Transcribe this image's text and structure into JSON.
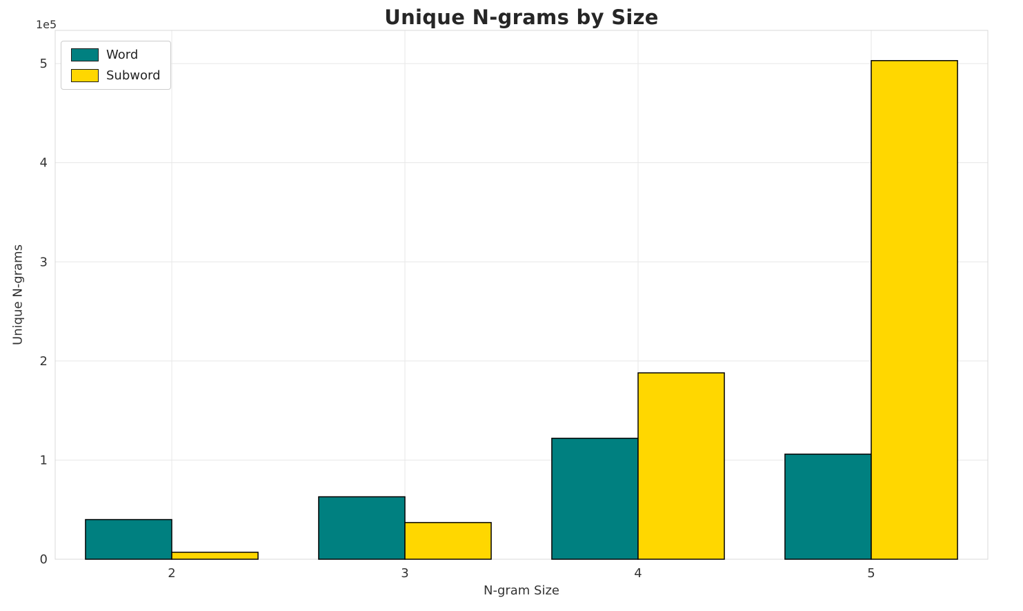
{
  "chart_data": {
    "type": "bar",
    "title": "Unique N-grams by Size",
    "xlabel": "N-gram Size",
    "ylabel": "Unique N-grams",
    "y_offset_label": "1e5",
    "categories": [
      "2",
      "3",
      "4",
      "5"
    ],
    "series": [
      {
        "name": "Word",
        "color": "#008080",
        "values": [
          40000,
          63000,
          122000,
          106000
        ]
      },
      {
        "name": "Subword",
        "color": "#FFD700",
        "values": [
          7000,
          37000,
          188000,
          503000
        ]
      }
    ],
    "ylim": [
      0,
      533500
    ],
    "yticks": [
      0,
      100000,
      200000,
      300000,
      400000,
      500000
    ],
    "ytick_labels": [
      "0",
      "1",
      "2",
      "3",
      "4",
      "5"
    ],
    "bar_edge_color": "#000000",
    "grid": true,
    "legend_position": "upper left"
  }
}
